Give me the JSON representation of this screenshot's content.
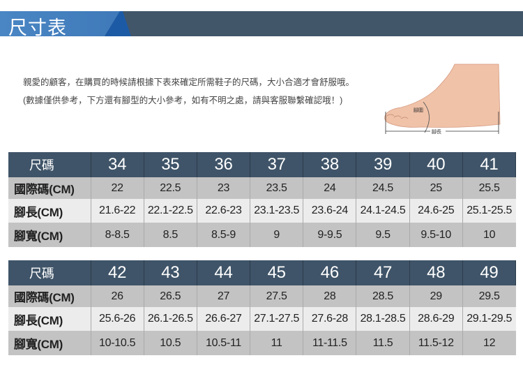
{
  "header": {
    "title": "尺寸表",
    "colors": {
      "blue": "#4a86c4",
      "dark": "#42566a"
    }
  },
  "intro": "親愛的顧客，在購買的時候請根據下表來確定所需鞋子的尺碼，大小合適才會舒服哦。 (數據僅供參考，下方還有腳型的大小參考，如有不明之處，請與客服聯繫確認哦！)",
  "foot_image": {
    "girth_label": "腳圍",
    "length_label": "腳長"
  },
  "tables": [
    {
      "header": "尺碼",
      "sizes": [
        "34",
        "35",
        "36",
        "37",
        "38",
        "39",
        "40",
        "41"
      ],
      "rows": [
        {
          "label": "國際碼(CM)",
          "values": [
            "22",
            "22.5",
            "23",
            "23.5",
            "24",
            "24.5",
            "25",
            "25.5"
          ]
        },
        {
          "label": "腳長(CM)",
          "values": [
            "21.6-22",
            "22.1-22.5",
            "22.6-23",
            "23.1-23.5",
            "23.6-24",
            "24.1-24.5",
            "24.6-25",
            "25.1-25.5"
          ]
        },
        {
          "label": "腳寬(CM)",
          "values": [
            "8-8.5",
            "8.5",
            "8.5-9",
            "9",
            "9-9.5",
            "9.5",
            "9.5-10",
            "10"
          ]
        }
      ]
    },
    {
      "header": "尺碼",
      "sizes": [
        "42",
        "43",
        "44",
        "45",
        "46",
        "47",
        "48",
        "49"
      ],
      "rows": [
        {
          "label": "國際碼(CM)",
          "values": [
            "26",
            "26.5",
            "27",
            "27.5",
            "28",
            "28.5",
            "29",
            "29.5"
          ]
        },
        {
          "label": "腳長(CM)",
          "values": [
            "25.6-26",
            "26.1-26.5",
            "26.6-27",
            "27.1-27.5",
            "27.6-28",
            "28.1-28.5",
            "28.6-29",
            "29.1-29.5"
          ]
        },
        {
          "label": "腳寬(CM)",
          "values": [
            "10-10.5",
            "10.5",
            "10.5-11",
            "11",
            "11-11.5",
            "11.5",
            "11.5-12",
            "12"
          ]
        }
      ]
    }
  ]
}
